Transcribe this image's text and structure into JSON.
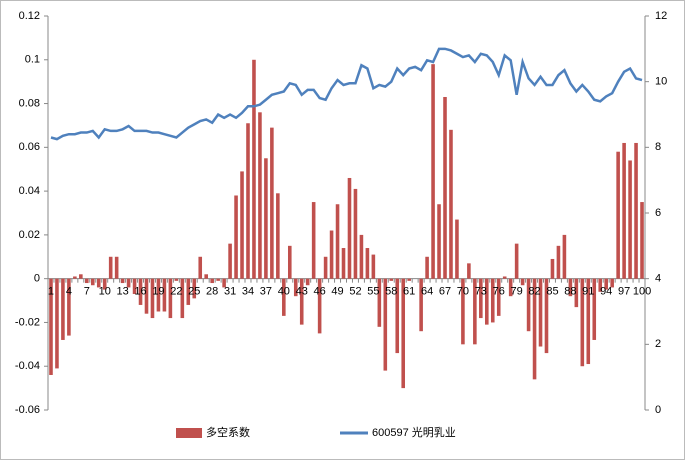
{
  "chart_data": {
    "type": "bar_line",
    "categories": [
      "1",
      null,
      null,
      "4",
      null,
      null,
      "7",
      null,
      null,
      "10",
      null,
      null,
      "13",
      null,
      null,
      "16",
      null,
      null,
      "19",
      null,
      null,
      "22",
      null,
      null,
      "25",
      null,
      null,
      "28",
      null,
      null,
      "31",
      null,
      null,
      "34",
      null,
      null,
      "37",
      null,
      null,
      "40",
      null,
      null,
      "43",
      null,
      null,
      "46",
      null,
      null,
      "49",
      null,
      null,
      "52",
      null,
      null,
      "55",
      null,
      null,
      "58",
      null,
      null,
      "61",
      null,
      null,
      "64",
      null,
      null,
      "67",
      null,
      null,
      "70",
      null,
      null,
      "73",
      null,
      null,
      "76",
      null,
      null,
      "79",
      null,
      null,
      "82",
      null,
      null,
      "85",
      null,
      null,
      "88",
      null,
      null,
      "91",
      null,
      null,
      "94",
      null,
      null,
      "97",
      null,
      null,
      "100"
    ],
    "series": [
      {
        "name": "多空系数",
        "color": "#c0504d",
        "axis": "y",
        "values": [
          -0.044,
          -0.041,
          -0.028,
          -0.026,
          0.001,
          0.002,
          -0.002,
          -0.003,
          -0.004,
          -0.005,
          0.01,
          0.01,
          -0.002,
          -0.004,
          -0.007,
          -0.012,
          -0.016,
          -0.018,
          -0.015,
          -0.015,
          -0.018,
          -0.001,
          -0.018,
          -0.012,
          -0.009,
          0.01,
          0.002,
          -0.002,
          -0.001,
          -0.004,
          0.016,
          0.038,
          0.049,
          0.071,
          0.1,
          0.076,
          0.055,
          0.069,
          0.039,
          -0.017,
          0.015,
          -0.008,
          -0.021,
          -0.003,
          0.035,
          -0.025,
          0.01,
          0.022,
          0.034,
          0.014,
          0.046,
          0.041,
          0.02,
          0.014,
          0.011,
          -0.022,
          -0.042,
          -0.001,
          -0.034,
          -0.05,
          -0.001,
          0.0,
          -0.024,
          0.01,
          0.098,
          0.034,
          0.083,
          0.068,
          0.027,
          -0.03,
          0.007,
          -0.03,
          -0.018,
          -0.021,
          -0.02,
          -0.017,
          0.001,
          -0.008,
          0.016,
          -0.003,
          -0.024,
          -0.046,
          -0.031,
          -0.034,
          0.009,
          0.015,
          0.02,
          -0.008,
          -0.013,
          -0.04,
          -0.039,
          -0.028,
          -0.006,
          -0.005,
          -0.004,
          0.058,
          0.062,
          0.054,
          0.062,
          0.035
        ]
      },
      {
        "name": "600597 光明乳业",
        "color": "#4f81bd",
        "axis": "y2",
        "values": [
          8.3,
          8.25,
          8.35,
          8.4,
          8.4,
          8.45,
          8.45,
          8.5,
          8.3,
          8.55,
          8.5,
          8.5,
          8.55,
          8.65,
          8.5,
          8.5,
          8.5,
          8.45,
          8.45,
          8.4,
          8.35,
          8.3,
          8.45,
          8.6,
          8.7,
          8.8,
          8.85,
          8.75,
          9.0,
          8.9,
          9.0,
          8.9,
          9.05,
          9.25,
          9.25,
          9.3,
          9.45,
          9.6,
          9.65,
          9.7,
          9.95,
          9.9,
          9.6,
          9.75,
          9.75,
          9.5,
          9.45,
          9.8,
          10.05,
          9.9,
          9.95,
          9.95,
          10.5,
          10.4,
          9.8,
          9.9,
          9.85,
          10.0,
          10.4,
          10.2,
          10.4,
          10.45,
          10.35,
          10.65,
          10.6,
          11.0,
          11.0,
          10.95,
          10.85,
          10.75,
          10.8,
          10.6,
          10.85,
          10.8,
          10.6,
          10.2,
          10.8,
          10.65,
          9.6,
          10.6,
          10.1,
          9.9,
          10.15,
          9.9,
          9.9,
          10.2,
          10.35,
          9.95,
          9.7,
          9.9,
          9.7,
          9.45,
          9.4,
          9.55,
          9.65,
          10.0,
          10.3,
          10.4,
          10.1,
          10.05
        ]
      }
    ],
    "ylim": [
      -0.06,
      0.12
    ],
    "yticks": [
      -0.06,
      -0.04,
      -0.02,
      0,
      0.02,
      0.04,
      0.06,
      0.08,
      0.1,
      0.12
    ],
    "y2lim": [
      0,
      12
    ],
    "y2ticks": [
      0,
      2,
      4,
      6,
      8,
      10,
      12
    ],
    "legend": "bottom"
  }
}
